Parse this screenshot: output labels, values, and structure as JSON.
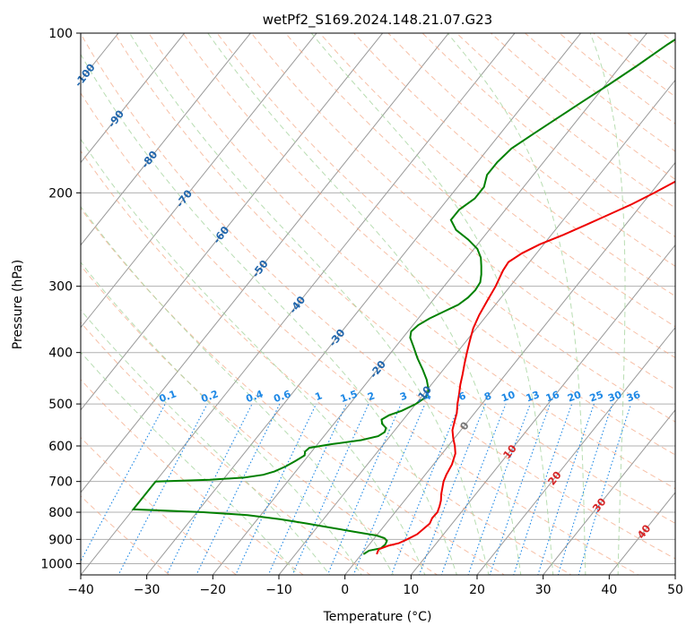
{
  "chart_data": {
    "type": "skew-t",
    "title": "wetPf2_S169.2024.148.21.07.G23",
    "xlabel": "Temperature (°C)",
    "ylabel": "Pressure (hPa)",
    "xlim": [
      -40,
      50
    ],
    "ylim_hpa": [
      1050,
      100
    ],
    "x_ticks": [
      "−40",
      "−30",
      "−20",
      "−10",
      "0",
      "10",
      "20",
      "30",
      "40",
      "50"
    ],
    "x_tick_values": [
      -40,
      -30,
      -20,
      -10,
      0,
      10,
      20,
      30,
      40,
      50
    ],
    "y_ticks": [
      "100",
      "200",
      "300",
      "400",
      "500",
      "600",
      "700",
      "800",
      "900",
      "1000"
    ],
    "y_tick_values": [
      100,
      200,
      300,
      400,
      500,
      600,
      700,
      800,
      900,
      1000
    ],
    "grid": true,
    "colors": {
      "temperature": "#ee0000",
      "dewpoint": "#008000",
      "isotherm": "#999999",
      "dry_adiabat": "#f4a582",
      "moist_adiabat": "#a6d49f",
      "mixing_ratio": "#1e88e5",
      "isotherm_label": "#2166ac",
      "dry_label": "#d62728",
      "mr_label": "#1e88e5"
    },
    "isotherm_labels": [
      "-100",
      "-90",
      "-80",
      "-70",
      "-60",
      "-50",
      "-40",
      "-30",
      "-20",
      "-10",
      "0",
      "10",
      "20",
      "30",
      "40"
    ],
    "isotherm_label_values": [
      -100,
      -90,
      -80,
      -70,
      -60,
      -50,
      -40,
      -30,
      -20,
      -10,
      0,
      10,
      20,
      30,
      40
    ],
    "isotherm_label_pressures": [
      120,
      145,
      173,
      205,
      240,
      278,
      325,
      375,
      430,
      480,
      550,
      615,
      690,
      775,
      870
    ],
    "mixing_ratio_labels": [
      "0.1",
      "0.2",
      "0.4",
      "0.6",
      "1",
      "1.5",
      "2",
      "3",
      "4",
      "6",
      "8",
      "10",
      "13",
      "16",
      "20",
      "25",
      "30",
      "36"
    ],
    "mixing_ratio_values": [
      0.1,
      0.2,
      0.4,
      0.6,
      1,
      1.5,
      2,
      3,
      4,
      6,
      8,
      10,
      13,
      16,
      20,
      25,
      30,
      36
    ],
    "temperature_profile": [
      {
        "p": 960,
        "t": 2.3
      },
      {
        "p": 940,
        "t": 2.0
      },
      {
        "p": 925,
        "t": 3.0
      },
      {
        "p": 915,
        "t": 4.3
      },
      {
        "p": 900,
        "t": 5.1
      },
      {
        "p": 880,
        "t": 6.0
      },
      {
        "p": 860,
        "t": 6.3
      },
      {
        "p": 840,
        "t": 6.6
      },
      {
        "p": 820,
        "t": 6.3
      },
      {
        "p": 800,
        "t": 6.4
      },
      {
        "p": 780,
        "t": 6.0
      },
      {
        "p": 760,
        "t": 5.5
      },
      {
        "p": 740,
        "t": 4.8
      },
      {
        "p": 720,
        "t": 4.2
      },
      {
        "p": 700,
        "t": 3.6
      },
      {
        "p": 680,
        "t": 3.2
      },
      {
        "p": 650,
        "t": 2.8
      },
      {
        "p": 620,
        "t": 2.0
      },
      {
        "p": 600,
        "t": 1.0
      },
      {
        "p": 580,
        "t": -0.2
      },
      {
        "p": 560,
        "t": -1.3
      },
      {
        "p": 540,
        "t": -2.0
      },
      {
        "p": 520,
        "t": -2.7
      },
      {
        "p": 500,
        "t": -3.7
      },
      {
        "p": 480,
        "t": -4.6
      },
      {
        "p": 460,
        "t": -5.6
      },
      {
        "p": 440,
        "t": -6.5
      },
      {
        "p": 420,
        "t": -7.5
      },
      {
        "p": 400,
        "t": -8.5
      },
      {
        "p": 380,
        "t": -9.5
      },
      {
        "p": 360,
        "t": -10.5
      },
      {
        "p": 340,
        "t": -11.2
      },
      {
        "p": 320,
        "t": -11.7
      },
      {
        "p": 300,
        "t": -12.2
      },
      {
        "p": 280,
        "t": -13.0
      },
      {
        "p": 270,
        "t": -13.2
      },
      {
        "p": 260,
        "t": -12.2
      },
      {
        "p": 250,
        "t": -10.6
      },
      {
        "p": 240,
        "t": -8.2
      },
      {
        "p": 230,
        "t": -6.0
      },
      {
        "p": 220,
        "t": -3.8
      },
      {
        "p": 210,
        "t": -1.5
      },
      {
        "p": 200,
        "t": 0.5
      },
      {
        "p": 190,
        "t": 2.4
      },
      {
        "p": 180,
        "t": 4.0
      },
      {
        "p": 170,
        "t": 5.2
      },
      {
        "p": 160,
        "t": 6.4
      },
      {
        "p": 155,
        "t": 7.4
      },
      {
        "p": 150,
        "t": 8.6
      },
      {
        "p": 140,
        "t": 10.0
      },
      {
        "p": 130,
        "t": 11.3
      },
      {
        "p": 120,
        "t": 12.4
      },
      {
        "p": 110,
        "t": 13.8
      },
      {
        "p": 100,
        "t": 15.8
      }
    ],
    "dewpoint_profile": [
      {
        "p": 960,
        "t": 0.3
      },
      {
        "p": 945,
        "t": 0.7
      },
      {
        "p": 935,
        "t": 2.2
      },
      {
        "p": 920,
        "t": 2.4
      },
      {
        "p": 905,
        "t": 2.2
      },
      {
        "p": 895,
        "t": 1.5
      },
      {
        "p": 885,
        "t": 0.0
      },
      {
        "p": 870,
        "t": -4.0
      },
      {
        "p": 855,
        "t": -8.0
      },
      {
        "p": 840,
        "t": -12.0
      },
      {
        "p": 825,
        "t": -16.5
      },
      {
        "p": 810,
        "t": -22.0
      },
      {
        "p": 800,
        "t": -29.0
      },
      {
        "p": 790,
        "t": -40.0
      },
      {
        "p": 700,
        "t": -40.0
      },
      {
        "p": 695,
        "t": -32.0
      },
      {
        "p": 688,
        "t": -27.0
      },
      {
        "p": 680,
        "t": -24.5
      },
      {
        "p": 670,
        "t": -23.2
      },
      {
        "p": 655,
        "t": -22.1
      },
      {
        "p": 640,
        "t": -21.3
      },
      {
        "p": 625,
        "t": -20.6
      },
      {
        "p": 615,
        "t": -21.0
      },
      {
        "p": 605,
        "t": -20.8
      },
      {
        "p": 595,
        "t": -17.8
      },
      {
        "p": 585,
        "t": -13.9
      },
      {
        "p": 575,
        "t": -11.8
      },
      {
        "p": 565,
        "t": -11.3
      },
      {
        "p": 555,
        "t": -11.6
      },
      {
        "p": 545,
        "t": -12.7
      },
      {
        "p": 535,
        "t": -13.3
      },
      {
        "p": 525,
        "t": -12.7
      },
      {
        "p": 515,
        "t": -11.3
      },
      {
        "p": 500,
        "t": -10.0
      },
      {
        "p": 485,
        "t": -9.3
      },
      {
        "p": 470,
        "t": -9.8
      },
      {
        "p": 450,
        "t": -11.3
      },
      {
        "p": 430,
        "t": -13.2
      },
      {
        "p": 410,
        "t": -15.3
      },
      {
        "p": 390,
        "t": -17.3
      },
      {
        "p": 375,
        "t": -18.9
      },
      {
        "p": 365,
        "t": -19.5
      },
      {
        "p": 355,
        "t": -19.2
      },
      {
        "p": 345,
        "t": -18.3
      },
      {
        "p": 335,
        "t": -17.0
      },
      {
        "p": 325,
        "t": -15.6
      },
      {
        "p": 315,
        "t": -15.0
      },
      {
        "p": 305,
        "t": -14.8
      },
      {
        "p": 295,
        "t": -15.0
      },
      {
        "p": 285,
        "t": -15.8
      },
      {
        "p": 275,
        "t": -16.8
      },
      {
        "p": 265,
        "t": -17.9
      },
      {
        "p": 255,
        "t": -19.5
      },
      {
        "p": 245,
        "t": -22.0
      },
      {
        "p": 235,
        "t": -25.0
      },
      {
        "p": 225,
        "t": -27.0
      },
      {
        "p": 215,
        "t": -27.0
      },
      {
        "p": 205,
        "t": -26.0
      },
      {
        "p": 195,
        "t": -26.0
      },
      {
        "p": 185,
        "t": -27.0
      },
      {
        "p": 175,
        "t": -27.0
      },
      {
        "p": 165,
        "t": -26.5
      },
      {
        "p": 155,
        "t": -25.0
      },
      {
        "p": 145,
        "t": -23.3
      },
      {
        "p": 135,
        "t": -21.5
      },
      {
        "p": 125,
        "t": -19.5
      },
      {
        "p": 115,
        "t": -17.5
      },
      {
        "p": 105,
        "t": -15.5
      },
      {
        "p": 100,
        "t": -14.2
      }
    ]
  }
}
